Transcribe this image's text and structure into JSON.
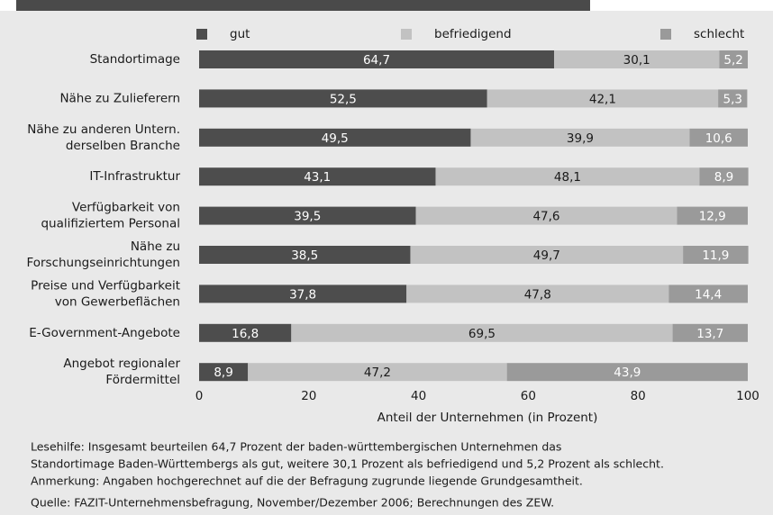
{
  "chart_data": {
    "type": "stacked-bar-horizontal",
    "categories": [
      [
        "Standortimage"
      ],
      [
        "Nähe zu Zulieferern"
      ],
      [
        "Nähe zu anderen Untern.",
        "derselben Branche"
      ],
      [
        "IT-Infrastruktur"
      ],
      [
        "Verfügbarkeit von",
        "qualifiziertem Personal"
      ],
      [
        "Nähe zu",
        "Forschungseinrichtungen"
      ],
      [
        "Preise und Verfügbarkeit",
        "von Gewerbeflächen"
      ],
      [
        "E-Government-Angebote"
      ],
      [
        "Angebot regionaler",
        "Fördermittel"
      ]
    ],
    "series": [
      {
        "name": "gut",
        "color": "#4d4d4d",
        "values": [
          64.7,
          52.5,
          49.5,
          43.1,
          39.5,
          38.5,
          37.8,
          16.8,
          8.9
        ],
        "value_labels": [
          "64,7",
          "52,5",
          "49,5",
          "43,1",
          "39,5",
          "38,5",
          "37,8",
          "16,8",
          "8,9"
        ]
      },
      {
        "name": "befriedigend",
        "color": "#c2c2c2",
        "values": [
          30.1,
          42.1,
          39.9,
          48.1,
          47.6,
          49.7,
          47.8,
          69.5,
          47.2
        ],
        "value_labels": [
          "30,1",
          "42,1",
          "39,9",
          "48,1",
          "47,6",
          "49,7",
          "47,8",
          "69,5",
          "47,2"
        ]
      },
      {
        "name": "schlecht",
        "color": "#9a9a9a",
        "values": [
          5.2,
          5.3,
          10.6,
          8.9,
          12.9,
          11.9,
          14.4,
          13.7,
          43.9
        ],
        "value_labels": [
          "5,2",
          "5,3",
          "10,6",
          "8,9",
          "12,9",
          "11,9",
          "14,4",
          "13,7",
          "43,9"
        ]
      }
    ],
    "xlim": [
      0,
      100
    ],
    "xticks": [
      0,
      20,
      40,
      60,
      80,
      100
    ],
    "x_label": "Anteil der Unternehmen (in Prozent)",
    "grid": false,
    "notes": [
      "Lesehilfe: Insgesamt beurteilen 64,7 Prozent der baden-württembergischen Unternehmen das",
      "Standortimage Baden-Württembergs als gut, weitere 30,1 Prozent als befriedigend und 5,2 Prozent als schlecht.",
      "Anmerkung: Angaben hochgerechnet auf die der Befragung zugrunde liegende Grundgesamtheit.",
      "Quelle: FAZIT-Unternehmensbefragung, November/Dezember 2006; Berechnungen des ZEW."
    ]
  }
}
